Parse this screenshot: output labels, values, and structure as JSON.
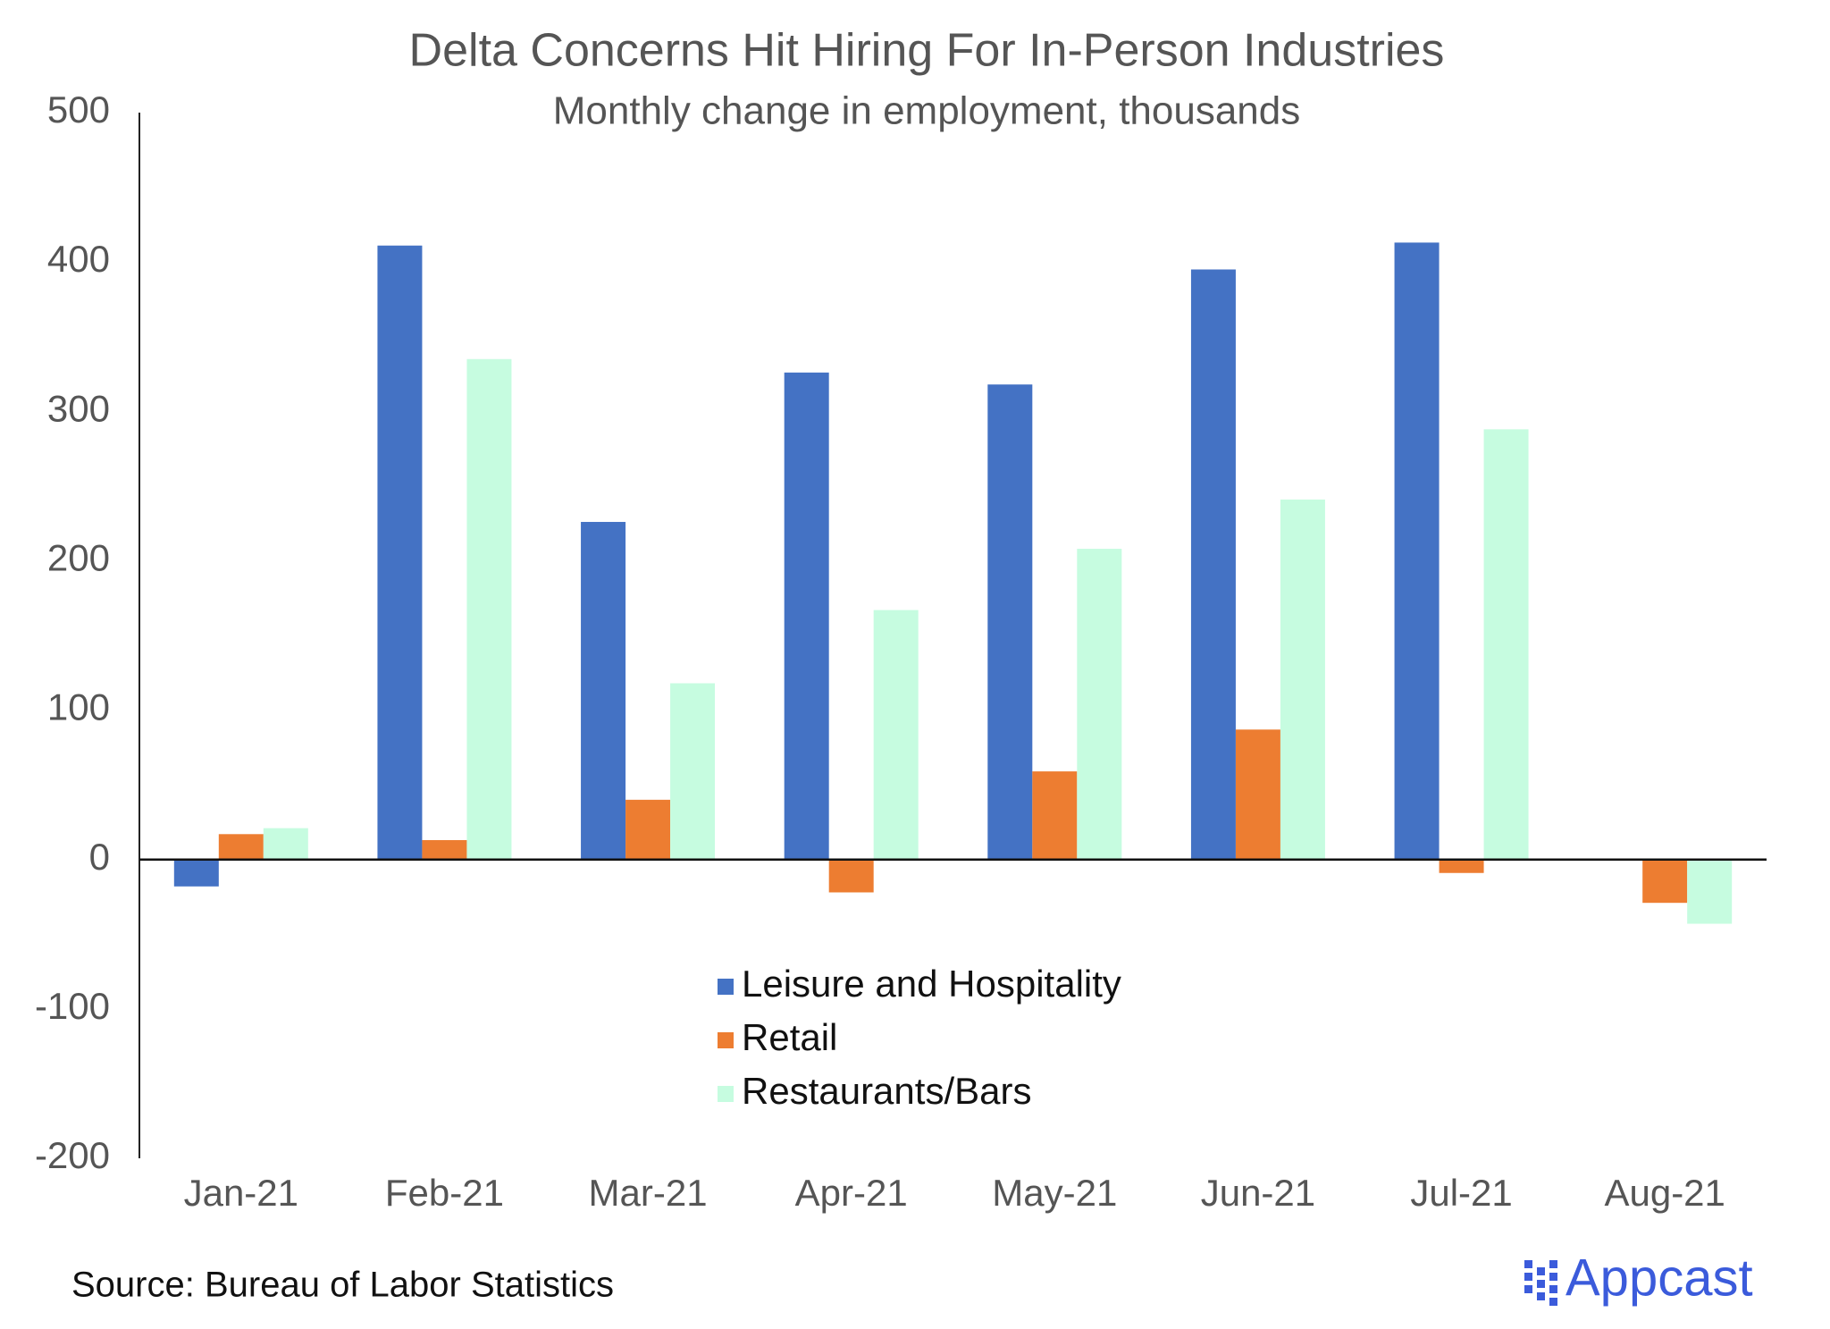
{
  "chart_data": {
    "type": "bar",
    "title": "Delta Concerns Hit Hiring For In-Person Industries",
    "subtitle": "Monthly change in employment, thousands",
    "categories": [
      "Jan-21",
      "Feb-21",
      "Mar-21",
      "Apr-21",
      "May-21",
      "Jun-21",
      "Jul-21",
      "Aug-21"
    ],
    "series": [
      {
        "name": "Leisure and Hospitality",
        "color": "#4472c4",
        "values": [
          -18,
          411,
          226,
          326,
          318,
          395,
          413,
          0
        ]
      },
      {
        "name": "Retail",
        "color": "#ed7d31",
        "values": [
          17,
          13,
          40,
          -22,
          59,
          87,
          -9,
          -29
        ]
      },
      {
        "name": "Restaurants/Bars",
        "color": "#c6fce0",
        "values": [
          21,
          335,
          118,
          167,
          208,
          241,
          288,
          -43
        ]
      }
    ],
    "ylim": [
      -200,
      500
    ],
    "yticks": [
      -200,
      -100,
      0,
      100,
      200,
      300,
      400,
      500
    ],
    "grid": false,
    "legend": "center",
    "source": "Source: Bureau of Labor Statistics",
    "logo": "Appcast"
  }
}
